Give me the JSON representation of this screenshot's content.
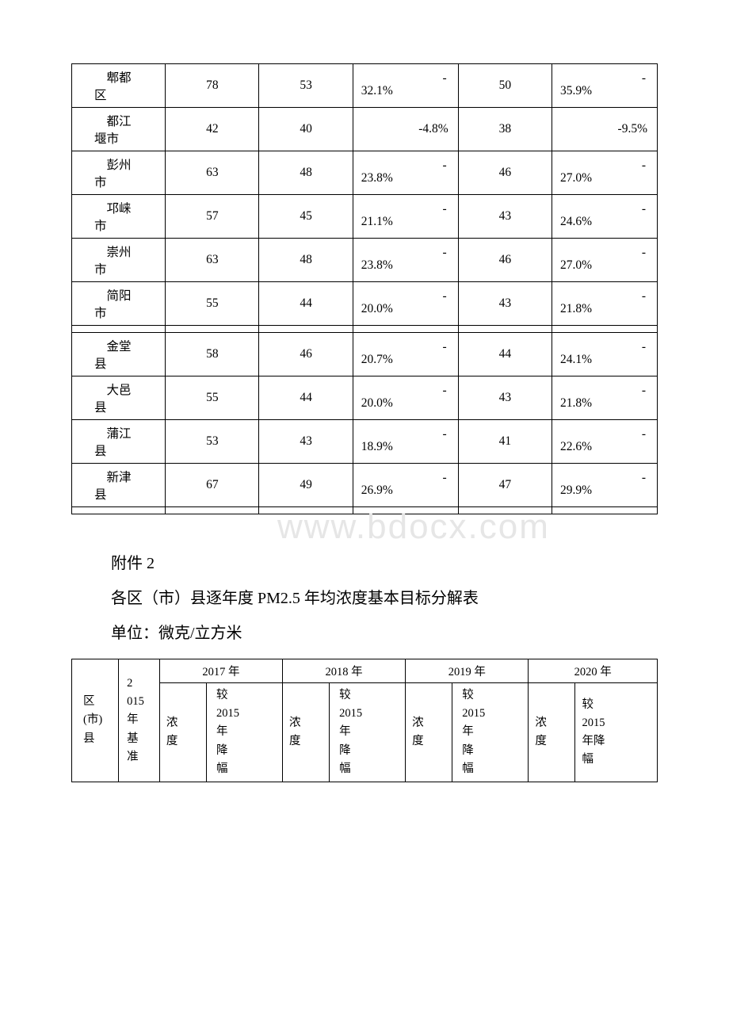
{
  "table1": {
    "rows": [
      {
        "label": "郫都\n区",
        "c2": "78",
        "c3": "53",
        "c4_dash": "-",
        "c4_val": "32.1%",
        "c4_single": null,
        "c5": "50",
        "c6_dash": "-",
        "c6_val": "35.9%",
        "c6_single": null
      },
      {
        "label": "都江\n堰市",
        "c2": "42",
        "c3": "40",
        "c4_dash": null,
        "c4_val": null,
        "c4_single": "-4.8%",
        "c5": "38",
        "c6_dash": null,
        "c6_val": null,
        "c6_single": "-9.5%"
      },
      {
        "label": "彭州\n市",
        "c2": "63",
        "c3": "48",
        "c4_dash": "-",
        "c4_val": "23.8%",
        "c4_single": null,
        "c5": "46",
        "c6_dash": "-",
        "c6_val": "27.0%",
        "c6_single": null
      },
      {
        "label": "邛崃\n市",
        "c2": "57",
        "c3": "45",
        "c4_dash": "-",
        "c4_val": "21.1%",
        "c4_single": null,
        "c5": "43",
        "c6_dash": "-",
        "c6_val": "24.6%",
        "c6_single": null
      },
      {
        "label": "崇州\n市",
        "c2": "63",
        "c3": "48",
        "c4_dash": "-",
        "c4_val": "23.8%",
        "c4_single": null,
        "c5": "46",
        "c6_dash": "-",
        "c6_val": "27.0%",
        "c6_single": null
      },
      {
        "label": "简阳\n市",
        "c2": "55",
        "c3": "44",
        "c4_dash": "-",
        "c4_val": "20.0%",
        "c4_single": null,
        "c5": "43",
        "c6_dash": "-",
        "c6_val": "21.8%",
        "c6_single": null
      }
    ],
    "rows2": [
      {
        "label": "金堂\n县",
        "c2": "58",
        "c3": "46",
        "c4_dash": "-",
        "c4_val": "20.7%",
        "c4_single": null,
        "c5": "44",
        "c6_dash": "-",
        "c6_val": "24.1%",
        "c6_single": null
      },
      {
        "label": "大邑\n县",
        "c2": "55",
        "c3": "44",
        "c4_dash": "-",
        "c4_val": "20.0%",
        "c4_single": null,
        "c5": "43",
        "c6_dash": "-",
        "c6_val": "21.8%",
        "c6_single": null
      },
      {
        "label": "蒲江\n县",
        "c2": "53",
        "c3": "43",
        "c4_dash": "-",
        "c4_val": "18.9%",
        "c4_single": null,
        "c5": "41",
        "c6_dash": "-",
        "c6_val": "22.6%",
        "c6_single": null
      },
      {
        "label": "新津\n县",
        "c2": "67",
        "c3": "49",
        "c4_dash": "-",
        "c4_val": "26.9%",
        "c4_single": null,
        "c5": "47",
        "c6_dash": "-",
        "c6_val": "29.9%",
        "c6_single": null
      }
    ]
  },
  "caption": {
    "line1": "附件 2",
    "line2": "各区（市）县逐年度 PM2.5 年均浓度基本目标分解表",
    "line3": "单位：微克/立方米"
  },
  "table2": {
    "colhead": {
      "c1": "区\n(市)\n县",
      "c2": "2\n015\n年\n基\n准"
    },
    "years": [
      "2017 年",
      "2018 年",
      "2019 年",
      "2020 年"
    ],
    "sub_left": "浓\n度",
    "sub_right_a": "较\n2015\n年\n降\n幅",
    "sub_right_b": "较\n2015\n年降\n幅"
  },
  "watermark": "www.bdocx.com"
}
